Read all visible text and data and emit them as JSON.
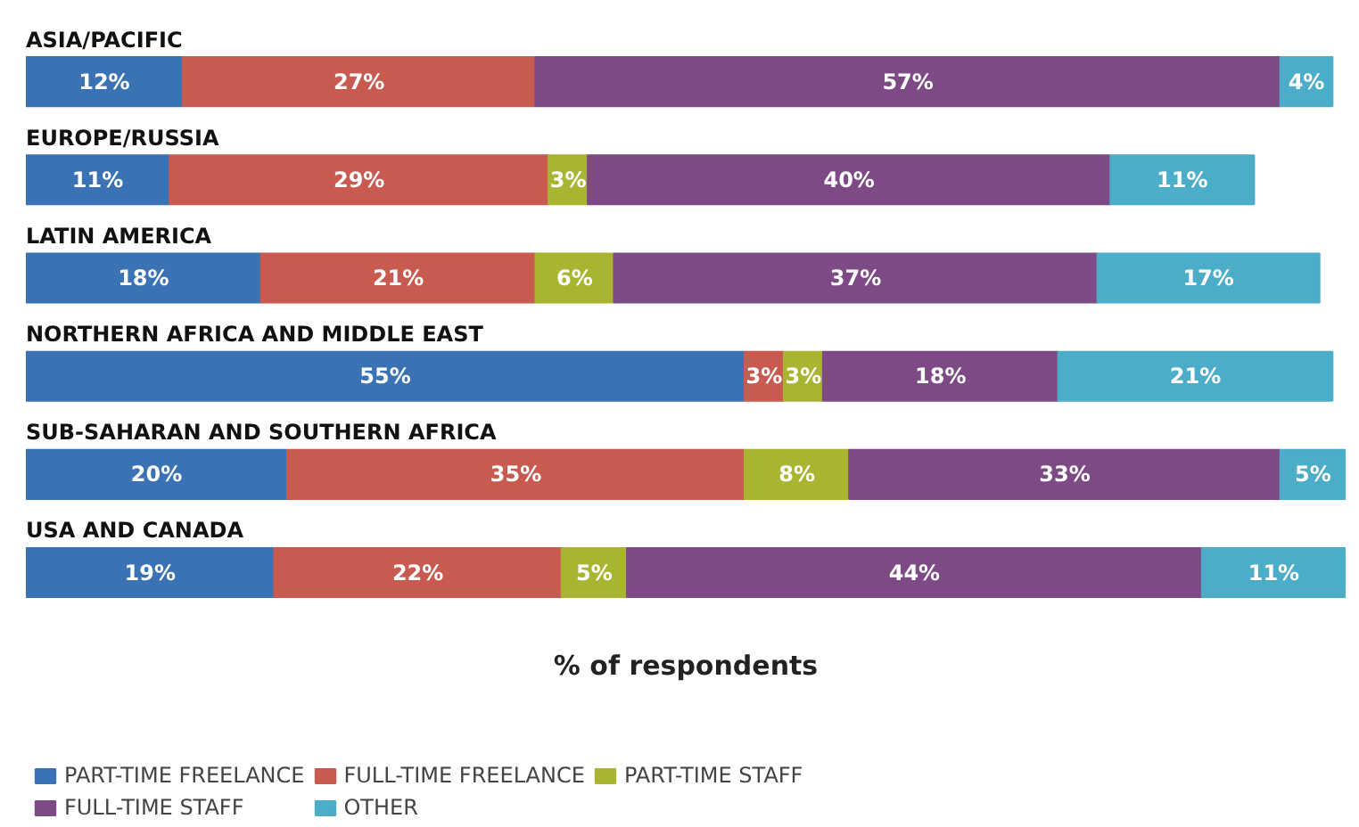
{
  "chart_data": {
    "type": "bar",
    "orientation": "horizontal",
    "stacked": true,
    "xlabel": "% of respondents",
    "tick_labels": false,
    "legend": "bottom",
    "grid": false,
    "categories": [
      "ASIA/PACIFIC",
      "EUROPE/RUSSIA",
      "LATIN AMERICA",
      "NORTHERN AFRICA AND MIDDLE EAST",
      "SUB-SAHARAN AND SOUTHERN AFRICA",
      "USA AND CANADA"
    ],
    "series": [
      {
        "name": "PART-TIME FREELANCE",
        "color": "#3a72b4",
        "values": [
          12,
          11,
          18,
          55,
          20,
          19
        ],
        "value_labels": [
          "12%",
          "11%",
          "18%",
          "55%",
          "20%",
          "19%"
        ]
      },
      {
        "name": "FULL-TIME FREELANCE",
        "color": "#c85a50",
        "values": [
          27,
          29,
          21,
          3,
          35,
          22
        ],
        "value_labels": [
          "27%",
          "29%",
          "21%",
          "3%",
          "35%",
          "22%"
        ]
      },
      {
        "name": "PART-TIME STAFF",
        "color": "#a9b531",
        "values": [
          null,
          3,
          6,
          3,
          8,
          5
        ],
        "value_labels": [
          null,
          "3%",
          "6%",
          "3%",
          "8%",
          "5%"
        ]
      },
      {
        "name": "FULL-TIME STAFF",
        "color": "#7d4a85",
        "values": [
          57,
          40,
          37,
          18,
          33,
          44
        ],
        "value_labels": [
          "57%",
          "40%",
          "37%",
          "18%",
          "33%",
          "44%"
        ]
      },
      {
        "name": "OTHER",
        "color": "#4badc8",
        "values": [
          4,
          11,
          17,
          21,
          5,
          11
        ],
        "value_labels": [
          "4%",
          "11%",
          "17%",
          "21%",
          "5%",
          "11%"
        ]
      }
    ]
  }
}
